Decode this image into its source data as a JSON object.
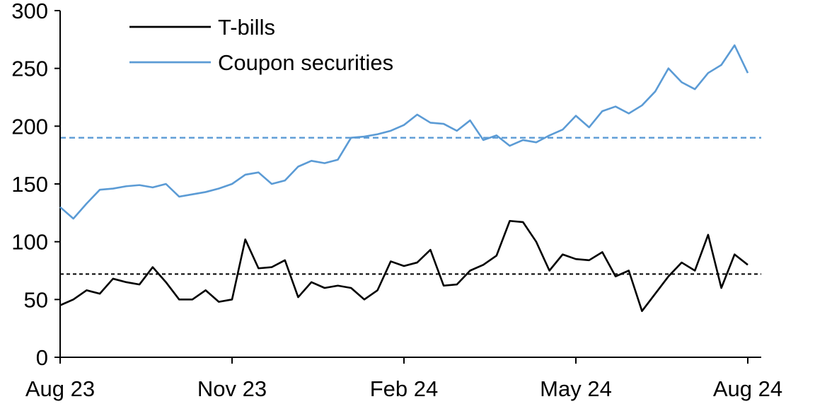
{
  "chart_data": {
    "type": "line",
    "title": "",
    "xlabel": "",
    "ylabel": "",
    "ylim": [
      0,
      300
    ],
    "y_ticks": [
      0,
      50,
      100,
      150,
      200,
      250,
      300
    ],
    "x_tick_labels": [
      "Aug 23",
      "Nov 23",
      "Feb 24",
      "May 24",
      "Aug 24"
    ],
    "x_tick_indices": [
      0,
      13,
      26,
      39,
      52
    ],
    "n_points": 53,
    "grid": false,
    "legend_position": "top-left",
    "series": [
      {
        "name": "T-bills",
        "color": "#000000",
        "values": [
          45,
          50,
          58,
          55,
          68,
          65,
          63,
          78,
          65,
          50,
          50,
          58,
          48,
          50,
          102,
          77,
          78,
          84,
          52,
          65,
          60,
          62,
          60,
          50,
          58,
          83,
          79,
          82,
          93,
          62,
          63,
          75,
          80,
          88,
          118,
          117,
          100,
          75,
          89,
          85,
          84,
          91,
          70,
          75,
          40,
          55,
          70,
          82,
          75,
          106,
          60,
          89,
          80
        ]
      },
      {
        "name": "Coupon securities",
        "color": "#5B9BD5",
        "values": [
          130,
          120,
          133,
          145,
          146,
          148,
          149,
          147,
          150,
          139,
          141,
          143,
          146,
          150,
          158,
          160,
          150,
          153,
          165,
          170,
          168,
          171,
          190,
          191,
          193,
          196,
          201,
          210,
          203,
          202,
          196,
          205,
          188,
          192,
          183,
          188,
          186,
          192,
          197,
          209,
          199,
          213,
          217,
          211,
          218,
          230,
          250,
          238,
          232,
          246,
          253,
          270,
          246
        ]
      }
    ],
    "reference_lines": [
      {
        "value": 72,
        "color": "#000000",
        "style": "dashed"
      },
      {
        "value": 190,
        "color": "#5B9BD5",
        "style": "dashed"
      }
    ]
  }
}
